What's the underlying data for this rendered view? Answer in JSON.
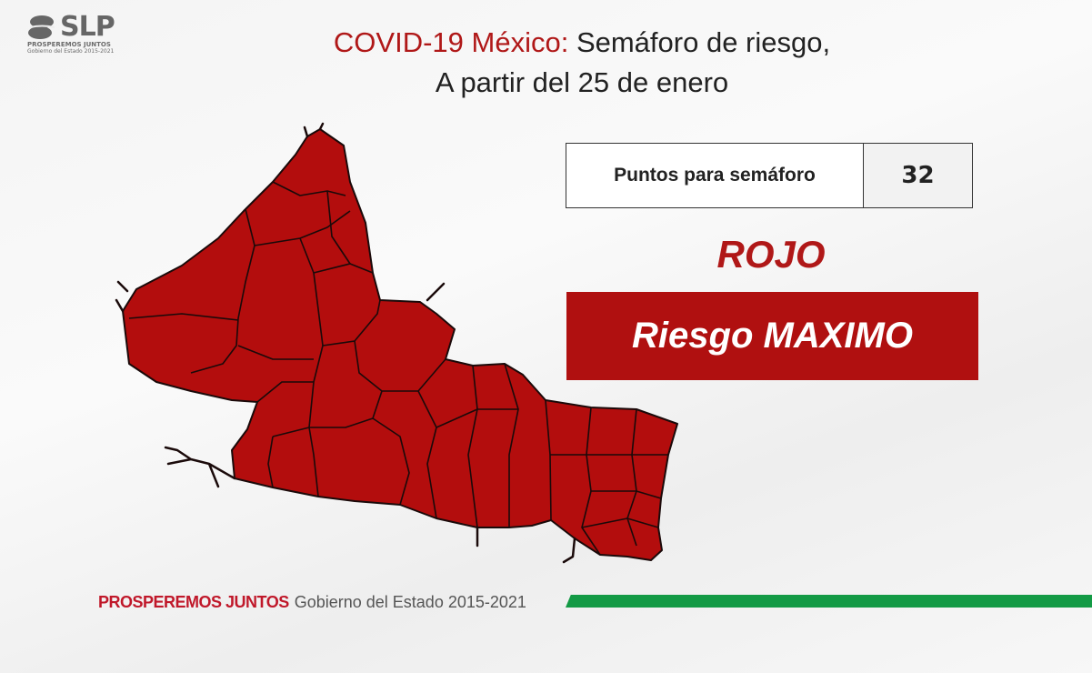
{
  "logo": {
    "text": "SLP",
    "line1": "PROSPEREMOS JUNTOS",
    "line2": "Gobierno del Estado 2015-2021"
  },
  "title": {
    "highlight": "COVID-19 México:",
    "rest": "Semáforo de riesgo,",
    "line2": "A partir del 25 de enero"
  },
  "points_box": {
    "label": "Puntos para semáforo",
    "value": "32"
  },
  "status": {
    "color_label": "ROJO",
    "risk_label": "Riesgo MAXIMO"
  },
  "map": {
    "region": "San Luis Potosí",
    "fill_color": "#b30d0d",
    "risk_level": "rojo"
  },
  "footer": {
    "slogan": "PROSPEREMOS JUNTOS",
    "government": "Gobierno del Estado 2015-2021"
  },
  "colors": {
    "red": "#b01010",
    "green": "#139a45"
  }
}
